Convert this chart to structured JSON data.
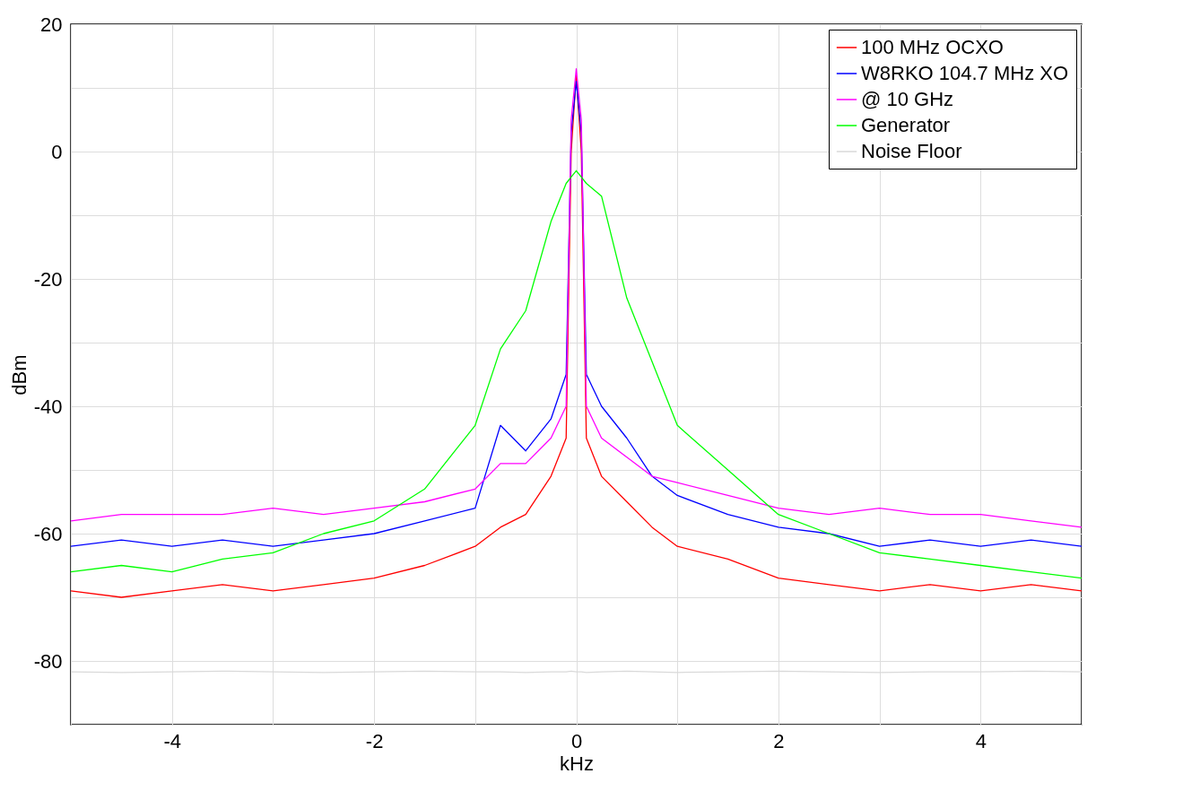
{
  "chart_data": {
    "type": "line",
    "xlabel": "kHz",
    "ylabel": "dBm",
    "xlim": [
      -5,
      5
    ],
    "ylim": [
      -90,
      20
    ],
    "xticks": [
      {
        "value": -5,
        "label": null
      },
      -4,
      {
        "value": -3,
        "label": null
      },
      -2,
      {
        "value": -1,
        "label": null
      },
      0,
      {
        "value": 1,
        "label": null
      },
      2,
      {
        "value": 3,
        "label": null
      },
      4,
      {
        "value": 5,
        "label": null
      }
    ],
    "yticks": [
      {
        "value": -90,
        "label": null
      },
      -80,
      {
        "value": -70,
        "label": null
      },
      -60,
      {
        "value": -50,
        "label": null
      },
      -40,
      {
        "value": -30,
        "label": null
      },
      -20,
      {
        "value": -10,
        "label": null
      },
      0,
      {
        "value": 10,
        "label": null
      },
      20
    ],
    "grid": true,
    "legend": "top right",
    "x": [
      -5,
      -4.5,
      -4,
      -3.5,
      -3,
      -2.5,
      -2,
      -1.5,
      -1,
      -0.75,
      -0.5,
      -0.25,
      -0.1,
      -0.05,
      0,
      0.05,
      0.1,
      0.25,
      0.5,
      0.75,
      1,
      1.5,
      2,
      2.5,
      3,
      3.5,
      4,
      4.5,
      5
    ],
    "series": [
      {
        "name": "100 MHz OCXO",
        "color": "#ff0000",
        "values": [
          -69,
          -70,
          -69,
          -68,
          -69,
          -68,
          -67,
          -65,
          -62,
          -59,
          -57,
          -51,
          -45,
          0,
          12,
          0,
          -45,
          -51,
          -55,
          -59,
          -62,
          -64,
          -67,
          -68,
          -69,
          -68,
          -69,
          -68,
          -69
        ]
      },
      {
        "name": "W8RKO 104.7 MHz XO",
        "color": "#0000ff",
        "values": [
          -62,
          -61,
          -62,
          -61,
          -62,
          -61,
          -60,
          -58,
          -56,
          -43,
          -47,
          -42,
          -35,
          3,
          11,
          3,
          -35,
          -40,
          -45,
          -51,
          -54,
          -57,
          -59,
          -60,
          -62,
          -61,
          -62,
          -61,
          -62
        ]
      },
      {
        "name": "@ 10 GHz",
        "color": "#ff00ff",
        "values": [
          -58,
          -57,
          -57,
          -57,
          -56,
          -57,
          -56,
          -55,
          -53,
          -49,
          -49,
          -45,
          -40,
          5,
          13,
          5,
          -40,
          -45,
          -48,
          -51,
          -52,
          -54,
          -56,
          -57,
          -56,
          -57,
          -57,
          -58,
          -59
        ]
      },
      {
        "name": "Generator",
        "color": "#00ff00",
        "values": [
          -66,
          -65,
          -66,
          -64,
          -63,
          -60,
          -58,
          -53,
          -43,
          -31,
          -25,
          -11,
          -5,
          -4,
          -3,
          -4,
          -5,
          -7,
          -23,
          -33,
          -43,
          -50,
          -57,
          -60,
          -63,
          -64,
          -65,
          -66,
          -67
        ]
      },
      {
        "name": "Noise Floor",
        "color": "#d9d9d9",
        "values": [
          -81.7,
          -81.8,
          -81.7,
          -81.6,
          -81.7,
          -81.8,
          -81.7,
          -81.6,
          -81.7,
          -81.7,
          -81.8,
          -81.7,
          -81.7,
          -81.6,
          -81.7,
          -81.7,
          -81.8,
          -81.7,
          -81.6,
          -81.7,
          -81.8,
          -81.7,
          -81.6,
          -81.7,
          -81.8,
          -81.7,
          -81.7,
          -81.6,
          -81.7
        ]
      }
    ]
  }
}
